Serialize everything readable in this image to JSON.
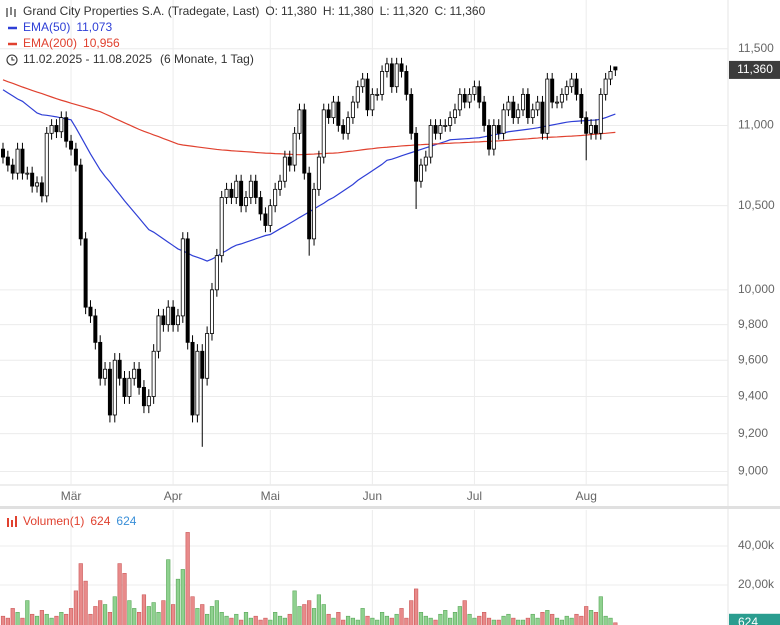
{
  "chart_data": {
    "type": "candlestick",
    "title": "Grand City Properties S.A. (Tradegate, Last)",
    "ohlc": [
      {
        "name": "O:",
        "text": "11,380"
      },
      {
        "name": "H:",
        "text": "11,380"
      },
      {
        "name": "L:",
        "text": "11,320"
      },
      {
        "name": "C:",
        "text": "11,360"
      }
    ],
    "range_label": "11.02.2025 - 11.08.2025",
    "range_note": "(6 Monate, 1 Tag)",
    "log_scale": true,
    "grid": true,
    "ylim": [
      8930,
      11830
    ],
    "yticks": [
      {
        "value": 9000,
        "label": "9,000"
      },
      {
        "value": 9200,
        "label": "9,200"
      },
      {
        "value": 9400,
        "label": "9,400"
      },
      {
        "value": 9600,
        "label": "9,600"
      },
      {
        "value": 9800,
        "label": "9,800"
      },
      {
        "value": 10000,
        "label": "10,000"
      },
      {
        "value": 10500,
        "label": "10,500"
      },
      {
        "value": 11000,
        "label": "11,000"
      },
      {
        "value": 11500,
        "label": "11,500"
      }
    ],
    "price_badge": {
      "value": 11360,
      "label": "11,360"
    },
    "categories": [
      null,
      null,
      null,
      null,
      null,
      null,
      null,
      null,
      null,
      null,
      null,
      null,
      null,
      null,
      "Mär",
      null,
      null,
      null,
      null,
      null,
      null,
      null,
      null,
      null,
      null,
      null,
      null,
      null,
      null,
      null,
      null,
      null,
      null,
      null,
      null,
      "Apr",
      null,
      null,
      null,
      null,
      null,
      null,
      null,
      null,
      null,
      null,
      null,
      null,
      null,
      null,
      null,
      null,
      null,
      null,
      null,
      "Mai",
      null,
      null,
      null,
      null,
      null,
      null,
      null,
      null,
      null,
      null,
      null,
      null,
      null,
      null,
      null,
      null,
      null,
      null,
      null,
      null,
      "Jun",
      null,
      null,
      null,
      null,
      null,
      null,
      null,
      null,
      null,
      null,
      null,
      null,
      null,
      null,
      null,
      null,
      null,
      null,
      null,
      null,
      "Jul",
      null,
      null,
      null,
      null,
      null,
      null,
      null,
      null,
      null,
      null,
      null,
      null,
      null,
      null,
      null,
      null,
      null,
      null,
      null,
      null,
      null,
      null,
      "Aug",
      null,
      null,
      null,
      null,
      null,
      null
    ],
    "candles": {
      "up_color": "#ffffff",
      "down_color": "#000000",
      "open": [
        10850,
        10800,
        10750,
        10700,
        10850,
        10700,
        10700,
        10620,
        10640,
        10560,
        10950,
        11000,
        10960,
        11050,
        10900,
        10850,
        10750,
        10300,
        9900,
        9850,
        9700,
        9500,
        9550,
        9300,
        9600,
        9500,
        9400,
        9500,
        9550,
        9450,
        9350,
        9400,
        9650,
        9850,
        9800,
        9900,
        9800,
        9850,
        10300,
        9700,
        9300,
        9650,
        9500,
        9750,
        10000,
        10200,
        10550,
        10600,
        10550,
        10650,
        10500,
        10550,
        10650,
        10550,
        10450,
        10380,
        10500,
        10600,
        10650,
        10800,
        10750,
        10950,
        11100,
        10700,
        10300,
        10600,
        10800,
        11100,
        11050,
        11150,
        11000,
        10950,
        11050,
        11150,
        11250,
        11300,
        11100,
        11200,
        11200,
        11350,
        11400,
        11250,
        11400,
        11350,
        11200,
        10950,
        10650,
        10750,
        10800,
        11000,
        10950,
        11000,
        11000,
        11050,
        11100,
        11200,
        11150,
        11200,
        11250,
        11150,
        11000,
        10850,
        11000,
        10950,
        11100,
        11150,
        11050,
        11100,
        11200,
        11050,
        11100,
        11150,
        10950,
        11300,
        11150,
        11150,
        11200,
        11250,
        11300,
        11200,
        11050,
        10950,
        11000,
        10950,
        11200,
        11300,
        11380
      ],
      "high": [
        10890,
        10840,
        10790,
        10890,
        10890,
        10740,
        10740,
        10680,
        10680,
        10990,
        11040,
        11040,
        11090,
        11090,
        10940,
        10890,
        10790,
        10340,
        9940,
        9890,
        9740,
        9590,
        9590,
        9640,
        9640,
        9540,
        9540,
        9590,
        9590,
        9490,
        9440,
        9690,
        9890,
        9890,
        9940,
        9940,
        9890,
        10340,
        10340,
        9740,
        9690,
        9690,
        9790,
        10040,
        10240,
        10590,
        10640,
        10640,
        10690,
        10690,
        10590,
        10690,
        10690,
        10590,
        10490,
        10540,
        10640,
        10690,
        10840,
        10840,
        10990,
        11140,
        11140,
        10740,
        10640,
        10840,
        11140,
        11140,
        11190,
        11190,
        11040,
        11090,
        11190,
        11290,
        11340,
        11340,
        11240,
        11240,
        11390,
        11440,
        11440,
        11440,
        11440,
        11390,
        11240,
        10990,
        10790,
        10840,
        11040,
        11040,
        11040,
        11040,
        11090,
        11140,
        11240,
        11240,
        11240,
        11290,
        11290,
        11190,
        11040,
        11040,
        11040,
        11140,
        11190,
        11190,
        11140,
        11240,
        11240,
        11140,
        11190,
        11190,
        11340,
        11340,
        11190,
        11240,
        11290,
        11340,
        11340,
        11240,
        11090,
        11040,
        11040,
        11240,
        11340,
        11390,
        11380
      ],
      "low": [
        10760,
        10710,
        10660,
        10660,
        10660,
        10660,
        10580,
        10580,
        10520,
        10520,
        10910,
        10920,
        10920,
        10860,
        10810,
        10710,
        10260,
        9860,
        9810,
        9660,
        9460,
        9460,
        9260,
        9260,
        9460,
        9360,
        9360,
        9460,
        9410,
        9310,
        9310,
        9360,
        9610,
        9760,
        9760,
        9760,
        9760,
        9810,
        9660,
        9260,
        9260,
        9130,
        9460,
        9710,
        9960,
        10160,
        10510,
        10510,
        10510,
        10460,
        10460,
        10510,
        10510,
        10410,
        10340,
        10340,
        10460,
        10560,
        10610,
        10710,
        10710,
        10910,
        10660,
        10200,
        10260,
        10560,
        10760,
        11010,
        11010,
        10960,
        10910,
        10910,
        11010,
        11110,
        11210,
        11060,
        11060,
        11160,
        11160,
        11310,
        11210,
        11210,
        11310,
        11160,
        10910,
        10480,
        10610,
        10710,
        10760,
        10910,
        10910,
        10960,
        10960,
        11010,
        11060,
        11110,
        11110,
        11160,
        11110,
        10960,
        10810,
        10810,
        10910,
        10910,
        11060,
        11010,
        11010,
        11060,
        11010,
        11010,
        11060,
        10910,
        10910,
        11110,
        11110,
        11110,
        11160,
        11210,
        11160,
        11010,
        10780,
        10910,
        10910,
        10910,
        11160,
        11260,
        11320
      ],
      "close": [
        10800,
        10750,
        10700,
        10850,
        10700,
        10700,
        10620,
        10640,
        10560,
        10950,
        11000,
        10960,
        11050,
        10900,
        10850,
        10750,
        10300,
        9900,
        9850,
        9700,
        9500,
        9550,
        9300,
        9600,
        9500,
        9400,
        9500,
        9550,
        9450,
        9350,
        9400,
        9650,
        9850,
        9800,
        9900,
        9800,
        9850,
        10300,
        9700,
        9300,
        9650,
        9500,
        9750,
        10000,
        10200,
        10550,
        10600,
        10550,
        10650,
        10500,
        10550,
        10650,
        10550,
        10450,
        10380,
        10500,
        10600,
        10650,
        10800,
        10750,
        10950,
        11100,
        10700,
        10300,
        10600,
        10800,
        11100,
        11050,
        11150,
        11000,
        10950,
        11050,
        11150,
        11250,
        11300,
        11100,
        11200,
        11200,
        11350,
        11400,
        11250,
        11400,
        11350,
        11200,
        10950,
        10650,
        10750,
        10800,
        11000,
        10950,
        11000,
        11000,
        11050,
        11100,
        11200,
        11150,
        11200,
        11250,
        11150,
        11000,
        10850,
        11000,
        10950,
        11100,
        11150,
        11050,
        11100,
        11200,
        11050,
        11100,
        11150,
        10950,
        11300,
        11150,
        11150,
        11200,
        11250,
        11300,
        11200,
        11050,
        10950,
        11000,
        10950,
        11200,
        11300,
        11350,
        11360
      ]
    },
    "series": [
      {
        "name": "EMA(50)",
        "value_label": "11,073",
        "color": "#2f3fd6",
        "values": [
          11230,
          11210,
          11190,
          11170,
          11155,
          11130,
          11105,
          11080,
          11068,
          11065,
          11060,
          11055,
          11048,
          11042,
          11036,
          10985,
          10930,
          10875,
          10820,
          10770,
          10720,
          10680,
          10645,
          10605,
          10568,
          10530,
          10495,
          10460,
          10425,
          10390,
          10355,
          10340,
          10320,
          10300,
          10280,
          10260,
          10240,
          10228,
          10215,
          10200,
          10190,
          10180,
          10168,
          10180,
          10195,
          10215,
          10230,
          10248,
          10262,
          10270,
          10280,
          10290,
          10300,
          10310,
          10320,
          10326,
          10343,
          10360,
          10376,
          10393,
          10410,
          10428,
          10445,
          10462,
          10480,
          10498,
          10515,
          10535,
          10550,
          10570,
          10590,
          10610,
          10630,
          10655,
          10675,
          10695,
          10715,
          10735,
          10755,
          10780,
          10787,
          10797,
          10808,
          10818,
          10828,
          10838,
          10848,
          10858,
          10868,
          10878,
          10888,
          10898,
          10909,
          10911,
          10913,
          10915,
          10917,
          10920,
          10922,
          10928,
          10934,
          10940,
          10946,
          10952,
          10960,
          10964,
          10968,
          10972,
          10976,
          10980,
          10985,
          10991,
          10997,
          11003,
          11009,
          11015,
          11021,
          11025,
          11027,
          11029,
          11031,
          11033,
          11035,
          11040,
          11050,
          11062,
          11073
        ]
      },
      {
        "name": "EMA(200)",
        "value_label": "10,956",
        "color": "#e0412f",
        "values": [
          11295,
          11283,
          11272,
          11260,
          11248,
          11237,
          11226,
          11215,
          11205,
          11194,
          11183,
          11172,
          11162,
          11153,
          11143,
          11134,
          11125,
          11116,
          11107,
          11097,
          11088,
          11074,
          11060,
          11045,
          11031,
          11017,
          11003,
          10989,
          10975,
          10963,
          10952,
          10940,
          10929,
          10917,
          10906,
          10894,
          10882,
          10876,
          10872,
          10868,
          10864,
          10860,
          10856,
          10852,
          10848,
          10845,
          10843,
          10840,
          10838,
          10836,
          10834,
          10832,
          10829,
          10827,
          10825,
          10824,
          10822,
          10821,
          10819,
          10818,
          10816,
          10815,
          10816,
          10818,
          10819,
          10821,
          10822,
          10824,
          10825,
          10827,
          10831,
          10835,
          10838,
          10842,
          10846,
          10850,
          10853,
          10857,
          10860,
          10862,
          10865,
          10867,
          10870,
          10872,
          10874,
          10877,
          10878,
          10880,
          10881,
          10883,
          10884,
          10886,
          10887,
          10889,
          10890,
          10892,
          10893,
          10895,
          10896,
          10898,
          10899,
          10901,
          10902,
          10904,
          10906,
          10909,
          10911,
          10913,
          10915,
          10918,
          10920,
          10923,
          10924,
          10926,
          10927,
          10929,
          10931,
          10932,
          10934,
          10936,
          10939,
          10942,
          10945,
          10948,
          10950,
          10953,
          10956
        ]
      }
    ],
    "volume": {
      "title": "Volumen(1)",
      "value_labels": [
        {
          "text": "624",
          "color": "#e0412f"
        },
        {
          "text": "624",
          "color": "#3a8fd8"
        }
      ],
      "up_color": "#8fd18f",
      "down_color": "#e88a8a",
      "ylim": [
        0,
        58500
      ],
      "yticks": [
        {
          "value": 20000,
          "label": "20,00k"
        },
        {
          "value": 40000,
          "label": "40,00k"
        }
      ],
      "badge": {
        "value": 624,
        "label": "624"
      },
      "values": [
        4000,
        3000,
        8000,
        6000,
        3000,
        12000,
        5000,
        4000,
        7000,
        5000,
        3000,
        4000,
        6000,
        5000,
        8000,
        17000,
        31000,
        22000,
        5000,
        9000,
        12000,
        10000,
        6000,
        14000,
        31000,
        26000,
        12000,
        8000,
        6000,
        15000,
        9000,
        11000,
        6000,
        12000,
        33000,
        10000,
        23000,
        28000,
        47000,
        14000,
        8000,
        10000,
        5000,
        9000,
        12000,
        6000,
        4000,
        3000,
        5000,
        2000,
        6000,
        3000,
        4000,
        2000,
        3000,
        2000,
        6000,
        4000,
        3000,
        5000,
        17000,
        9000,
        10000,
        12000,
        8000,
        15000,
        10000,
        5000,
        3000,
        6000,
        2000,
        4000,
        3000,
        2000,
        8000,
        4000,
        3000,
        2000,
        6000,
        4000,
        3000,
        5000,
        8000,
        3000,
        12000,
        18000,
        6000,
        4000,
        3000,
        2000,
        5000,
        7000,
        3000,
        6000,
        9000,
        12000,
        5000,
        3000,
        4000,
        6000,
        3000,
        2000,
        2000,
        4000,
        5000,
        3000,
        2000,
        2000,
        3000,
        5000,
        3000,
        6000,
        7000,
        5000,
        3000,
        2000,
        4000,
        3000,
        5000,
        4000,
        9000,
        7000,
        6000,
        14000,
        4000,
        3000,
        624
      ]
    }
  }
}
